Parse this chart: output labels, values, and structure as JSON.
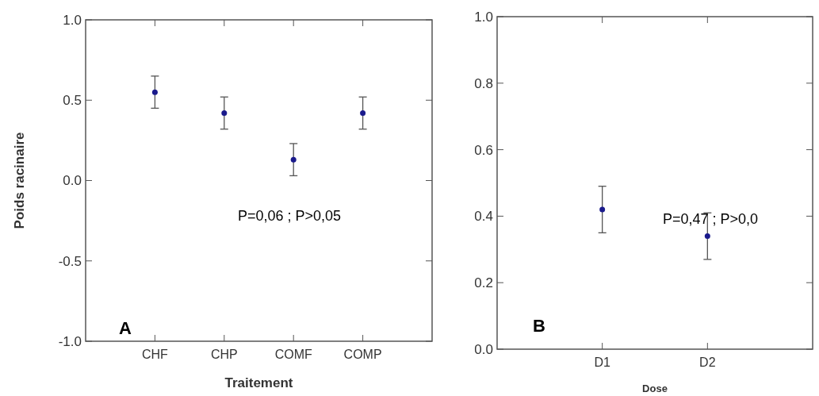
{
  "chart_data": [
    {
      "type": "scatter",
      "categories": [
        "CHF",
        "CHP",
        "COMF",
        "COMP"
      ],
      "values": [
        0.55,
        0.42,
        0.13,
        0.42
      ],
      "errors": [
        0.1,
        0.1,
        0.1,
        0.1
      ],
      "color": "#1a1a8c",
      "marker": "circle",
      "ylim": [
        -1,
        1
      ],
      "yticks": [
        {
          "value": -1,
          "label": "-1.0"
        },
        -0.5,
        {
          "value": 0,
          "label": "0.0"
        },
        0.5,
        {
          "value": 1,
          "label": "1.0"
        }
      ],
      "xlabel": "Traitement",
      "ylabel": "Poids racinaire",
      "annotations": [
        "P=0,06 ; P>0,05",
        "A"
      ]
    },
    {
      "type": "scatter",
      "categories": [
        "D1",
        "D2"
      ],
      "values": [
        0.42,
        0.34
      ],
      "errors": [
        0.07,
        0.07
      ],
      "color": "#1a1a8c",
      "marker": "circle",
      "ylim": [
        0,
        1
      ],
      "yticks": [
        {
          "value": 0,
          "label": "0.0"
        },
        0.2,
        0.4,
        0.6,
        0.8,
        {
          "value": 1,
          "label": "1.0"
        }
      ],
      "xlabel": "Dose",
      "annotations": [
        "P=0,47 ; P>0,0",
        "B"
      ]
    }
  ]
}
